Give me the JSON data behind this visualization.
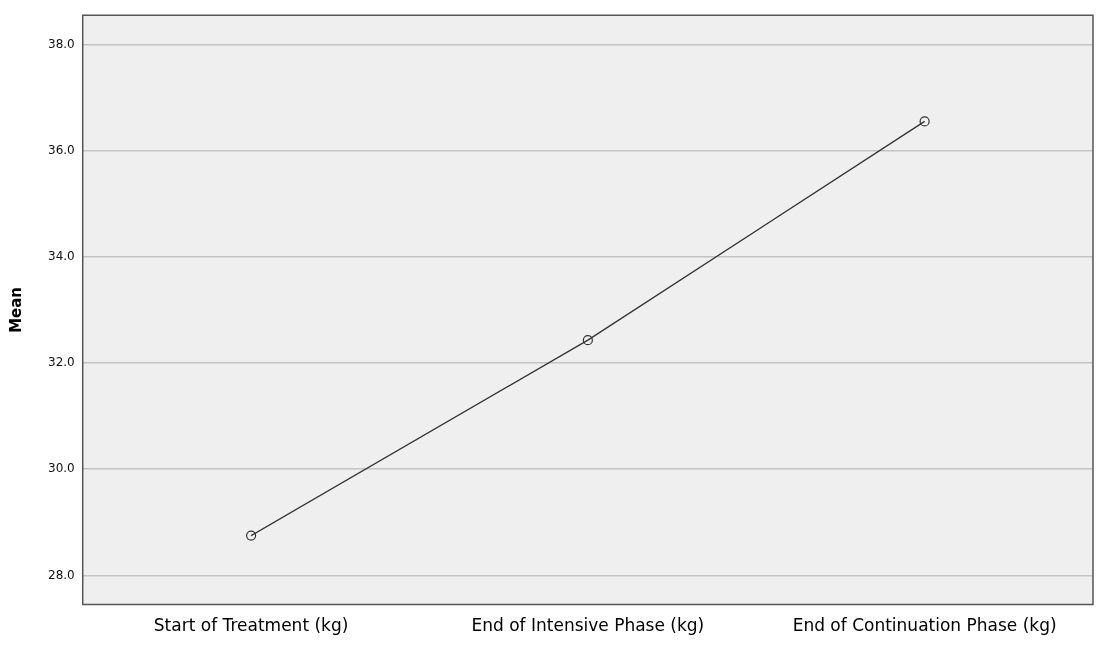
{
  "chart_data": {
    "type": "line",
    "ylabel": "Mean",
    "categories": [
      "Start of Treatment (kg)",
      "End of Intensive Phase (kg)",
      "End of Continuation Phase (kg)"
    ],
    "series": [
      {
        "color": "#333333",
        "values": [
          28.75,
          32.43,
          36.55
        ]
      }
    ],
    "ylim": [
      27.45,
      38.55
    ],
    "yticks": [
      {
        "value": 28,
        "label": "28.0"
      },
      {
        "value": 30,
        "label": "30.0"
      },
      {
        "value": 32,
        "label": "32.0"
      },
      {
        "value": 34,
        "label": "34.0"
      },
      {
        "value": 36,
        "label": "36.0"
      },
      {
        "value": 38,
        "label": "38.0"
      }
    ],
    "grid": "y",
    "legend": false,
    "marker": "circle",
    "line_style": "solid"
  }
}
